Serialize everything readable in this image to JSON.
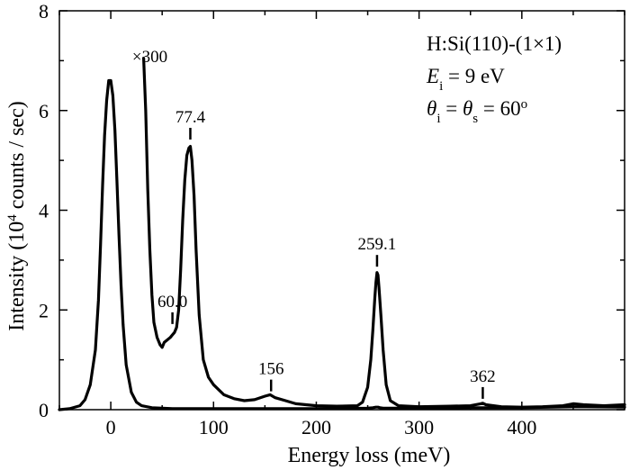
{
  "chart_data": {
    "type": "line",
    "xlabel": "Energy loss (meV)",
    "ylabel": "Intensity (10⁴ counts / sec)",
    "xlim": [
      -50,
      500
    ],
    "ylim": [
      0,
      8
    ],
    "x_ticks": [
      0,
      100,
      200,
      300,
      400
    ],
    "y_ticks": [
      0,
      2,
      4,
      6,
      8
    ],
    "grid": false,
    "series": [
      {
        "id": "main",
        "x": [
          -50,
          -40,
          -30,
          -25,
          -20,
          -15,
          -12,
          -10,
          -8,
          -6,
          -4,
          -2,
          0,
          2,
          4,
          6,
          8,
          10,
          12,
          15,
          20,
          25,
          30,
          40,
          60,
          80,
          100,
          150,
          200,
          250,
          255,
          258,
          259,
          260,
          262,
          265,
          270,
          300,
          350,
          400,
          450,
          500
        ],
        "y": [
          0.0,
          0.02,
          0.08,
          0.2,
          0.5,
          1.2,
          2.2,
          3.3,
          4.5,
          5.5,
          6.2,
          6.6,
          6.6,
          6.3,
          5.6,
          4.6,
          3.5,
          2.5,
          1.7,
          0.9,
          0.35,
          0.15,
          0.08,
          0.04,
          0.02,
          0.02,
          0.02,
          0.02,
          0.02,
          0.03,
          0.04,
          0.05,
          0.05,
          0.05,
          0.04,
          0.03,
          0.03,
          0.03,
          0.04,
          0.04,
          0.06,
          0.05
        ]
      },
      {
        "id": "x300",
        "x": [
          32,
          34,
          36,
          38,
          40,
          42,
          45,
          48,
          50,
          52,
          55,
          58,
          60,
          62,
          64,
          66,
          68,
          70,
          72,
          74,
          76,
          77.4,
          79,
          81,
          83,
          86,
          90,
          95,
          100,
          110,
          120,
          130,
          140,
          150,
          155,
          160,
          170,
          180,
          190,
          200,
          220,
          240,
          245,
          250,
          253,
          255,
          257,
          258,
          259.1,
          260,
          261,
          263,
          265,
          268,
          272,
          280,
          300,
          330,
          350,
          360,
          362,
          365,
          380,
          400,
          420,
          440,
          450,
          460,
          480,
          500
        ],
        "y": [
          7.05,
          6.0,
          4.4,
          3.2,
          2.3,
          1.75,
          1.45,
          1.3,
          1.25,
          1.35,
          1.4,
          1.45,
          1.5,
          1.55,
          1.65,
          2.0,
          2.8,
          3.8,
          4.6,
          5.1,
          5.25,
          5.28,
          5.0,
          4.3,
          3.2,
          1.9,
          1.0,
          0.65,
          0.5,
          0.3,
          0.22,
          0.18,
          0.2,
          0.27,
          0.3,
          0.24,
          0.18,
          0.12,
          0.1,
          0.08,
          0.07,
          0.08,
          0.15,
          0.45,
          1.0,
          1.6,
          2.25,
          2.55,
          2.75,
          2.7,
          2.45,
          1.85,
          1.2,
          0.5,
          0.18,
          0.08,
          0.06,
          0.07,
          0.08,
          0.12,
          0.13,
          0.1,
          0.06,
          0.05,
          0.06,
          0.08,
          0.12,
          0.1,
          0.08,
          0.1
        ]
      }
    ],
    "annotations": [
      {
        "text": "×300",
        "x": 38,
        "y": 7.1
      },
      {
        "text": "77.4",
        "x": 77.4,
        "y": 5.4,
        "marker_x": 77.4
      },
      {
        "text": "60.0",
        "x": 60.0,
        "y": 1.7,
        "marker_x": 60.0
      },
      {
        "text": "156",
        "x": 156,
        "y": 0.35,
        "marker_x": 156
      },
      {
        "text": "259.1",
        "x": 259.1,
        "y": 2.85,
        "marker_x": 259.1
      },
      {
        "text": "362",
        "x": 362,
        "y": 0.2,
        "marker_x": 362
      }
    ],
    "legend_box": {
      "position": "top-right",
      "lines": [
        "H:Si(110)-(1×1)",
        "E",
        "i",
        " = 9 eV",
        "θ",
        "i",
        " = ",
        "θ",
        "s",
        " = 60",
        "o"
      ]
    }
  }
}
